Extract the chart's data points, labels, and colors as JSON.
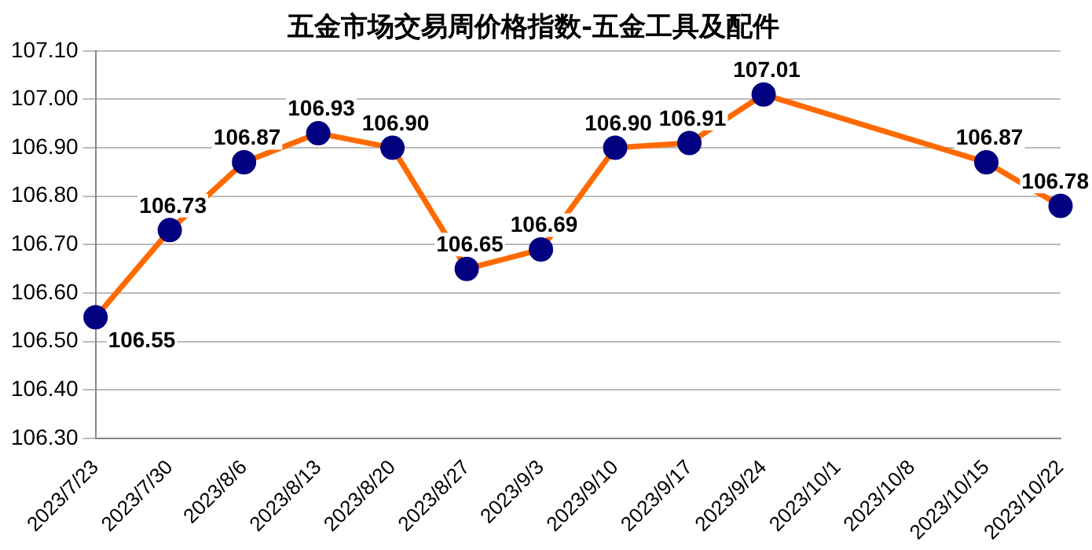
{
  "chart_data": {
    "type": "line",
    "title": "五金市场交易周价格指数-五金工具及配件",
    "categories": [
      "2023/7/23",
      "2023/7/30",
      "2023/8/6",
      "2023/8/13",
      "2023/8/20",
      "2023/8/27",
      "2023/9/3",
      "2023/9/10",
      "2023/9/17",
      "2023/9/24",
      "2023/10/1",
      "2023/10/8",
      "2023/10/15",
      "2023/10/22"
    ],
    "series": [
      {
        "color": "#ff6a00",
        "values": [
          106.55,
          106.73,
          106.87,
          106.93,
          106.9,
          106.65,
          106.69,
          106.9,
          106.91,
          107.01,
          null,
          null,
          106.87,
          106.78
        ],
        "value_labels": [
          "106.55",
          "106.73",
          "106.87",
          "106.93",
          "106.90",
          "106.65",
          "106.69",
          "106.90",
          "106.91",
          "107.01",
          null,
          null,
          "106.87",
          "106.78"
        ]
      }
    ],
    "ylim": [
      106.3,
      107.1
    ],
    "yticks": [
      {
        "value": 106.3,
        "label": "106.30"
      },
      {
        "value": 106.4,
        "label": "106.40"
      },
      {
        "value": 106.5,
        "label": "106.50"
      },
      {
        "value": 106.6,
        "label": "106.60"
      },
      {
        "value": 106.7,
        "label": "106.70"
      },
      {
        "value": 106.8,
        "label": "106.80"
      },
      {
        "value": 106.9,
        "label": "106.90"
      },
      {
        "value": 107.0,
        "label": "107.00"
      },
      {
        "value": 107.1,
        "label": "107.10"
      }
    ],
    "grid": "y",
    "legend": false,
    "marker": "circle",
    "line_style": "solid"
  }
}
